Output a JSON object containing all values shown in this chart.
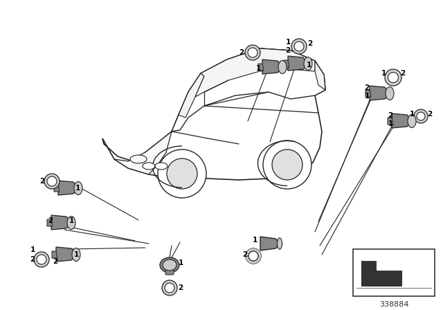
{
  "bg_color": "#ffffff",
  "lc": "#222222",
  "sensor_color": "#aaaaaa",
  "sensor_dark": "#888888",
  "sensor_light": "#cccccc",
  "fig_width": 6.4,
  "fig_height": 4.48,
  "part_number": "338884",
  "dpi": 100
}
